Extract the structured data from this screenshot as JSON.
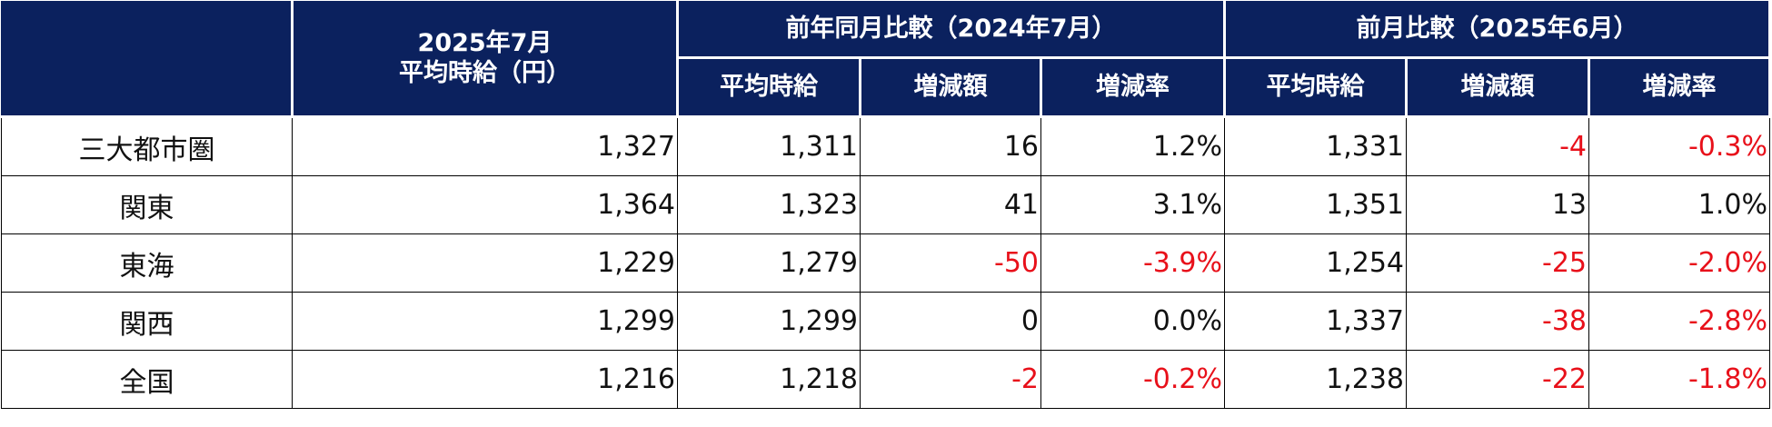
{
  "table": {
    "header": {
      "current": [
        "2025年7月",
        "平均時給（円）"
      ],
      "groups": [
        {
          "title": "前年同月比較（2024年7月）",
          "columns": [
            "平均時給",
            "増減額",
            "増減率"
          ]
        },
        {
          "title": "前月比較（2025年6月）",
          "columns": [
            "平均時給",
            "増減額",
            "増減率"
          ]
        }
      ]
    },
    "rows": [
      [
        "三大都市圏",
        "1,327",
        "1,311",
        "16",
        "1.2%",
        "1,331",
        "-4",
        "-0.3%"
      ],
      [
        "関東",
        "1,364",
        "1,323",
        "41",
        "3.1%",
        "1,351",
        "13",
        "1.0%"
      ],
      [
        "東海",
        "1,229",
        "1,279",
        "-50",
        "-3.9%",
        "1,254",
        "-25",
        "-2.0%"
      ],
      [
        "関西",
        "1,299",
        "1,299",
        "0",
        "0.0%",
        "1,337",
        "-38",
        "-2.8%"
      ],
      [
        "全国",
        "1,216",
        "1,218",
        "-2",
        "-0.2%",
        "1,238",
        "-22",
        "-1.8%"
      ]
    ]
  }
}
